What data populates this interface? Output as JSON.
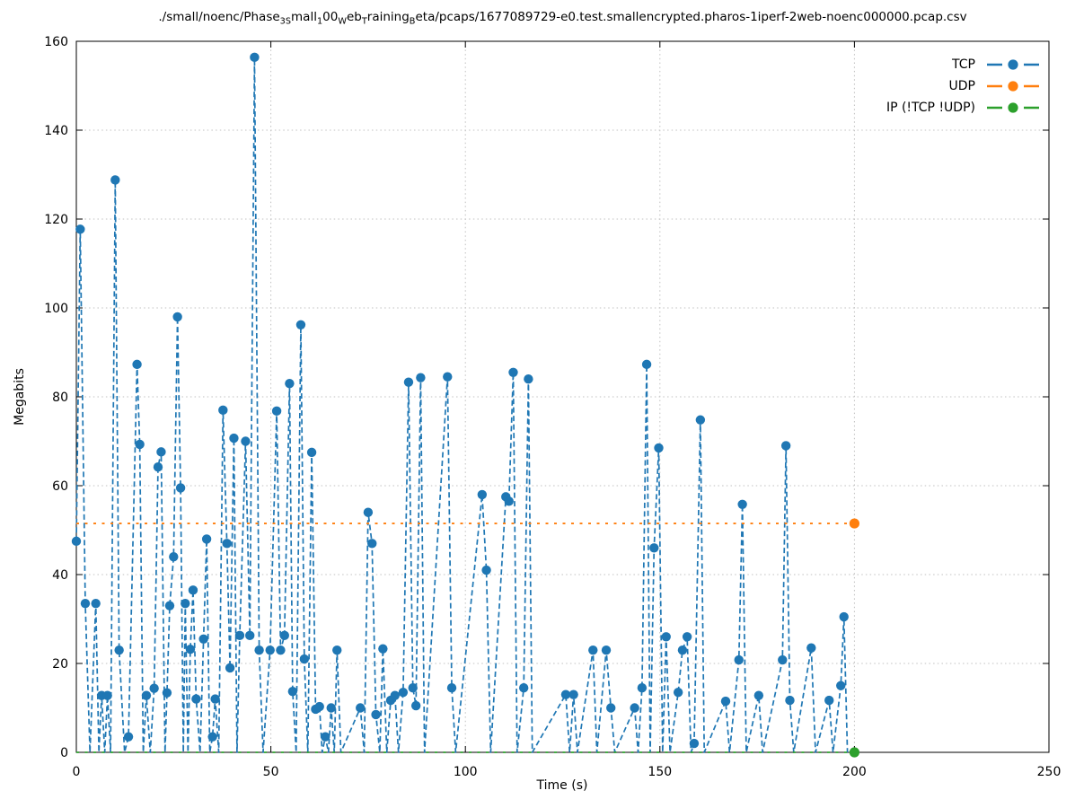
{
  "title": {
    "text": "./small/noenc/Phase3Small100WebTrainingBeta/pcaps/1677089729-e0.test.smallencrypted.pharos-1iperf-2web-noenc000000.pcap.csv",
    "segments": [
      {
        "text": "./small/noenc/Phase",
        "sub": false
      },
      {
        "text": "3S",
        "sub": true
      },
      {
        "text": "mall",
        "sub": false
      },
      {
        "text": "1",
        "sub": true
      },
      {
        "text": "00",
        "sub": false
      },
      {
        "text": "W",
        "sub": true
      },
      {
        "text": "eb",
        "sub": false
      },
      {
        "text": "T",
        "sub": true
      },
      {
        "text": "raining",
        "sub": false
      },
      {
        "text": "B",
        "sub": true
      },
      {
        "text": "eta/pcaps/1677089729-e0.test.smallencrypted.pharos-1iperf-2web-noenc000000.pcap.csv",
        "sub": false
      }
    ]
  },
  "axes": {
    "xlabel": "Time (s)",
    "ylabel": "Megabits",
    "xticks": [
      0,
      50,
      100,
      150,
      200,
      250
    ],
    "yticks": [
      0,
      20,
      40,
      60,
      80,
      100,
      120,
      140,
      160
    ]
  },
  "colors": {
    "tcp": "#1f77b4",
    "udp": "#ff7f0e",
    "ip": "#2ca02c",
    "grid": "#c0c0c0",
    "axis": "#000000"
  },
  "chart_data": {
    "type": "line",
    "title": "./small/noenc/Phase3Small100WebTrainingBeta/pcaps/1677089729-e0.test.smallencrypted.pharos-1iperf-2web-noenc000000.pcap.csv",
    "xlabel": "Time (s)",
    "ylabel": "Megabits",
    "xlim": [
      0,
      250
    ],
    "ylim": [
      0,
      160
    ],
    "grid": true,
    "legend_position": "top-right",
    "legend_marker_first": false,
    "series": [
      {
        "name": "TCP",
        "color": "#1f77b4",
        "style": "dashed-line-with-circle-markers",
        "points": [
          [
            0,
            47.5
          ],
          [
            1,
            117.7
          ],
          [
            2.3,
            33.5
          ],
          [
            3.5,
            0
          ],
          [
            5,
            33.5
          ],
          [
            5.8,
            0
          ],
          [
            6.5,
            12.8
          ],
          [
            7.3,
            0
          ],
          [
            8,
            12.8
          ],
          [
            8.8,
            0
          ],
          [
            10,
            128.8
          ],
          [
            11,
            23
          ],
          [
            12.4,
            0
          ],
          [
            13.4,
            3.5
          ],
          [
            15.6,
            87.3
          ],
          [
            16.3,
            69.3
          ],
          [
            17.2,
            0
          ],
          [
            18,
            12.8
          ],
          [
            19,
            0
          ],
          [
            20,
            14.4
          ],
          [
            21,
            64.2
          ],
          [
            21.8,
            67.6
          ],
          [
            22.8,
            0
          ],
          [
            23.3,
            13.4
          ],
          [
            24,
            33
          ],
          [
            25,
            44
          ],
          [
            26,
            98
          ],
          [
            26.8,
            59.5
          ],
          [
            27.5,
            0
          ],
          [
            28,
            33.5
          ],
          [
            28.7,
            0
          ],
          [
            29.3,
            23.2
          ],
          [
            30,
            36.5
          ],
          [
            30.8,
            12
          ],
          [
            31.8,
            0
          ],
          [
            32.7,
            25.5
          ],
          [
            33.5,
            48
          ],
          [
            34.3,
            0
          ],
          [
            35,
            3.5
          ],
          [
            35.7,
            12
          ],
          [
            36.6,
            0
          ],
          [
            37.7,
            77
          ],
          [
            38.7,
            47
          ],
          [
            39.5,
            19
          ],
          [
            40.5,
            70.7
          ],
          [
            41.3,
            0
          ],
          [
            42,
            26.3
          ],
          [
            43.5,
            70
          ],
          [
            44.6,
            26.3
          ],
          [
            45.8,
            156.4
          ],
          [
            47,
            23
          ],
          [
            48,
            0
          ],
          [
            49.8,
            23
          ],
          [
            51.5,
            76.8
          ],
          [
            52.5,
            23
          ],
          [
            53.5,
            26.3
          ],
          [
            54.8,
            83
          ],
          [
            55.6,
            13.7
          ],
          [
            56.5,
            0
          ],
          [
            57.7,
            96.2
          ],
          [
            58.6,
            21
          ],
          [
            59.5,
            0
          ],
          [
            60.5,
            67.5
          ],
          [
            61.5,
            9.7
          ],
          [
            62.5,
            10.3
          ],
          [
            63.2,
            0
          ],
          [
            64,
            3.5
          ],
          [
            64.8,
            0
          ],
          [
            65.5,
            10
          ],
          [
            66.3,
            0
          ],
          [
            67,
            23
          ],
          [
            68,
            0
          ],
          [
            73,
            10
          ],
          [
            74,
            0
          ],
          [
            75,
            54
          ],
          [
            76,
            47
          ],
          [
            77,
            8.5
          ],
          [
            78,
            0
          ],
          [
            78.8,
            23.3
          ],
          [
            79.8,
            0
          ],
          [
            80.8,
            11.7
          ],
          [
            81.9,
            12.8
          ],
          [
            82.8,
            0
          ],
          [
            84,
            13.5
          ],
          [
            85.4,
            83.3
          ],
          [
            86.5,
            14.5
          ],
          [
            87.3,
            10.5
          ],
          [
            88.5,
            84.3
          ],
          [
            89.5,
            0
          ],
          [
            95.4,
            84.5
          ],
          [
            96.5,
            14.5
          ],
          [
            97.5,
            0
          ],
          [
            104.3,
            58
          ],
          [
            105.4,
            41
          ],
          [
            106.5,
            0
          ],
          [
            110.4,
            57.5
          ],
          [
            111.2,
            56.5
          ],
          [
            112.3,
            85.5
          ],
          [
            113.3,
            0
          ],
          [
            115,
            14.5
          ],
          [
            116.2,
            84
          ],
          [
            117.2,
            0
          ],
          [
            125.8,
            13
          ],
          [
            126.8,
            0
          ],
          [
            127.8,
            13
          ],
          [
            128.8,
            0
          ],
          [
            132.8,
            23
          ],
          [
            133.8,
            0
          ],
          [
            136.2,
            23
          ],
          [
            137.4,
            10
          ],
          [
            138.4,
            0
          ],
          [
            143.5,
            10
          ],
          [
            144.4,
            0
          ],
          [
            145.4,
            14.5
          ],
          [
            146.6,
            87.3
          ],
          [
            147.5,
            0
          ],
          [
            148.5,
            46
          ],
          [
            149.7,
            68.5
          ],
          [
            150.7,
            0
          ],
          [
            151.6,
            26
          ],
          [
            152.6,
            0
          ],
          [
            154.7,
            13.5
          ],
          [
            155.8,
            23
          ],
          [
            157,
            26
          ],
          [
            158,
            0
          ],
          [
            158.8,
            2
          ],
          [
            160.4,
            74.8
          ],
          [
            161.4,
            0
          ],
          [
            166.9,
            11.5
          ],
          [
            167.9,
            0
          ],
          [
            170.3,
            20.8
          ],
          [
            171.2,
            55.8
          ],
          [
            172.2,
            0
          ],
          [
            175.4,
            12.8
          ],
          [
            176.4,
            0
          ],
          [
            181.5,
            20.8
          ],
          [
            182.4,
            69
          ],
          [
            183.4,
            11.7
          ],
          [
            184.4,
            0
          ],
          [
            188.9,
            23.5
          ],
          [
            190,
            0
          ],
          [
            193.5,
            11.7
          ],
          [
            194.5,
            0
          ],
          [
            196.5,
            15
          ],
          [
            197.3,
            30.5
          ],
          [
            198.2,
            0
          ]
        ]
      },
      {
        "name": "UDP",
        "color": "#ff7f0e",
        "style": "sparse-dashed-line",
        "constant_value": 51.5,
        "x_range": [
          0,
          200
        ],
        "marker_at": [
          200,
          51.5
        ]
      },
      {
        "name": "IP (!TCP  !UDP)",
        "color": "#2ca02c",
        "style": "sparse-dashed-line",
        "constant_value": 0,
        "x_range": [
          0,
          200
        ],
        "marker_at": [
          200,
          0
        ]
      }
    ]
  },
  "legend": {
    "items": [
      {
        "label": "TCP",
        "color": "#1f77b4"
      },
      {
        "label": "UDP",
        "color": "#ff7f0e"
      },
      {
        "label": "IP (!TCP  !UDP)",
        "color": "#2ca02c"
      }
    ]
  }
}
